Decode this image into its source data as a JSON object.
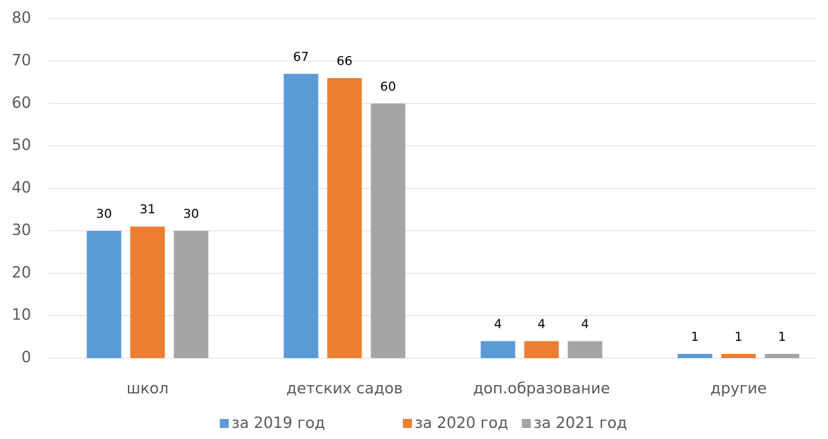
{
  "chart_data": {
    "type": "bar",
    "categories": [
      "школ",
      "детских садов",
      "доп.образование",
      "другие"
    ],
    "series": [
      {
        "name": "за 2019 год",
        "color": "#5b9bd5",
        "values": [
          30,
          67,
          4,
          1
        ]
      },
      {
        "name": "за 2020 год",
        "color": "#ed7d31",
        "values": [
          31,
          66,
          4,
          1
        ]
      },
      {
        "name": "за 2021 год",
        "color": "#a5a5a5",
        "values": [
          30,
          60,
          4,
          1
        ]
      }
    ],
    "ylim": [
      0,
      80
    ],
    "yticks": [
      0,
      10,
      20,
      30,
      40,
      50,
      60,
      70,
      80
    ],
    "grid": true,
    "legend": "bottom"
  }
}
